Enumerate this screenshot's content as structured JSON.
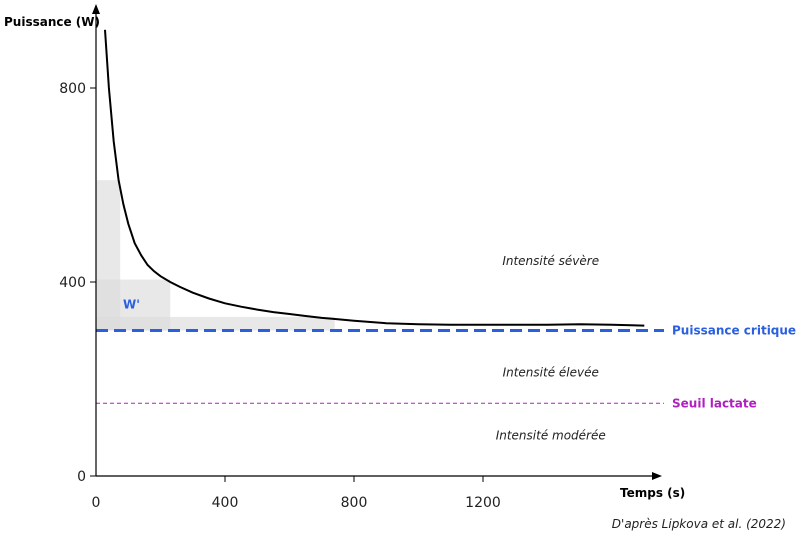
{
  "chart_data": {
    "type": "line",
    "ylabel": "Puissance (W)",
    "xlabel": "Temps (s)",
    "x_ticks": [
      0,
      400,
      800,
      1200
    ],
    "y_ticks": [
      0,
      400,
      800
    ],
    "xlim": [
      0,
      1750
    ],
    "ylim": [
      0,
      920
    ],
    "series": [
      {
        "x": [
          28,
          40,
          55,
          70,
          85,
          100,
          120,
          140,
          160,
          180,
          200,
          230,
          260,
          300,
          350,
          400,
          450,
          500,
          550,
          600,
          650,
          700,
          750,
          800,
          900,
          1000,
          1100,
          1200,
          1300,
          1400,
          1500,
          1600,
          1700
        ],
        "y": [
          920,
          800,
          690,
          610,
          560,
          520,
          480,
          455,
          435,
          422,
          412,
          400,
          390,
          378,
          366,
          356,
          349,
          343,
          338,
          334,
          330,
          326,
          323,
          320,
          315,
          313,
          312,
          312,
          312,
          312,
          313,
          312,
          310
        ],
        "color": "#000000"
      }
    ],
    "shaded_regions": [
      {
        "x": [
          0,
          75
        ],
        "y": [
          300,
          610
        ],
        "color": "#dcdcdc"
      },
      {
        "x": [
          0,
          230
        ],
        "y": [
          300,
          405
        ],
        "color": "#dcdcdc"
      },
      {
        "x": [
          0,
          740
        ],
        "y": [
          300,
          328
        ],
        "color": "#dcdcdc"
      }
    ],
    "reference_lines": [
      {
        "label": "Puissance critique",
        "y": 300,
        "color": "#2a5fe0",
        "style": "dashed"
      },
      {
        "label": "Seuil lactate",
        "y": 150,
        "color": "#b020c0",
        "style": "dashed"
      }
    ],
    "annotations": [
      {
        "text": "W'",
        "x": 110,
        "y": 345,
        "color": "#2a5fe0"
      },
      {
        "text": "Intensité sévère",
        "x": 1410,
        "y": 435
      },
      {
        "text": "Intensité élevée",
        "x": 1410,
        "y": 205
      },
      {
        "text": "Intensité modérée",
        "x": 1410,
        "y": 75
      }
    ],
    "source": "D'après Lipkova et al. (2022)"
  }
}
